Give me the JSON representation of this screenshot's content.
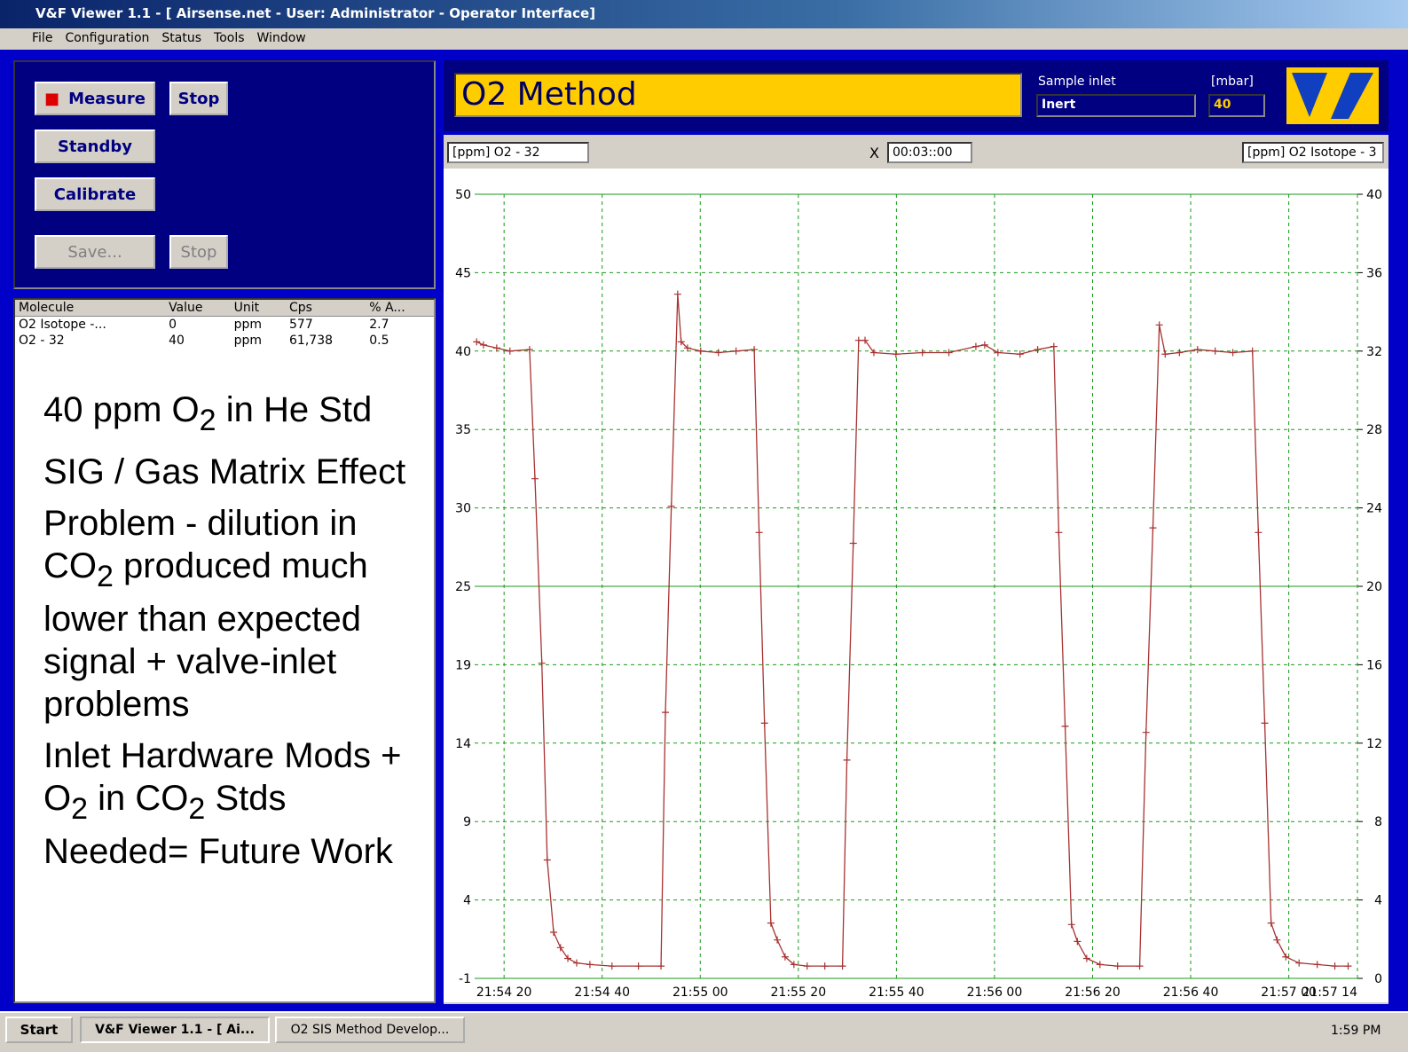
{
  "window": {
    "title": "V&F Viewer 1.1 - [  Airsense.net - User: Administrator - Operator Interface]",
    "menu": [
      "File",
      "Configuration",
      "Status",
      "Tools",
      "Window"
    ]
  },
  "controls": {
    "buttons": [
      "Measure",
      "Stop",
      "Standby",
      "Calibrate",
      "Save...",
      "Stop"
    ]
  },
  "table": {
    "header": [
      "Molecule",
      "Value",
      "Unit",
      "Cps",
      "% A..."
    ],
    "rows": [
      [
        "O2 Isotope -...",
        "0",
        "ppm",
        "577",
        "2.7"
      ],
      [
        "O2 - 32",
        "40",
        "ppm",
        "61,738",
        "0.5"
      ]
    ]
  },
  "notes": [
    [
      "40 ppm O",
      "2",
      " in He Std"
    ],
    [
      "SIG / Gas Matrix Effect"
    ],
    [
      "Problem - dilution in CO",
      "2",
      " produced much lower than expected signal + valve-inlet problems"
    ],
    [
      "Inlet Hardware Mods + O",
      "2",
      " in CO",
      "2",
      " Stds Needed= Future Work"
    ]
  ],
  "header": {
    "method": "O2 Method",
    "inlet_label": "Sample inlet",
    "inlet": "Inert",
    "pressure_label": "[mbar]",
    "pressure": "40"
  },
  "chart_toolbar": {
    "left_channel": "[ppm] O2 - 32",
    "x_label": "X",
    "span": "00:03::00",
    "right_channel": "[ppm] O2 Isotope - 3"
  },
  "chart_data": {
    "type": "line",
    "grid": true,
    "xlim": [
      78854,
      79034
    ],
    "xticks": [
      {
        "value": 78860,
        "label": "21:54 20"
      },
      {
        "value": 78880,
        "label": "21:54 40"
      },
      {
        "value": 78900,
        "label": "21:55 00"
      },
      {
        "value": 78920,
        "label": "21:55 20"
      },
      {
        "value": 78940,
        "label": "21:55 40"
      },
      {
        "value": 78960,
        "label": "21:56 00"
      },
      {
        "value": 78980,
        "label": "21:56 20"
      },
      {
        "value": 79000,
        "label": "21:56 40"
      },
      {
        "value": 79020,
        "label": "21:57 00"
      },
      {
        "value": 79034,
        "label": "21:57 14"
      }
    ],
    "ylim": [
      -1,
      50
    ],
    "yticks": [
      50,
      {
        "value": 44.9,
        "label": "45"
      },
      {
        "value": 39.8,
        "label": "40"
      },
      {
        "value": 34.7,
        "label": "35"
      },
      {
        "value": 29.6,
        "label": "30"
      },
      {
        "value": 24.5,
        "label": "25"
      },
      {
        "value": 19.4,
        "label": "19"
      },
      {
        "value": 14.3,
        "label": "14"
      },
      {
        "value": 9.2,
        "label": "9"
      },
      {
        "value": 4.1,
        "label": "4"
      },
      -1
    ],
    "y2lim": [
      0,
      40
    ],
    "y2ticks": [
      40,
      36,
      32,
      28,
      24,
      20,
      16,
      12,
      8,
      4,
      0
    ],
    "x": [
      78854.4,
      78855.8,
      78858.5,
      78861.2,
      78865.2,
      78866.3,
      78867.7,
      78868.8,
      78870.1,
      78871.5,
      78873.0,
      78874.8,
      78877.5,
      78882.0,
      78887.4,
      78892.0,
      78892.9,
      78894.1,
      78895.4,
      78896.1,
      78897.4,
      78900.1,
      78903.7,
      78907.3,
      78911.0,
      78912.0,
      78913.1,
      78914.4,
      78915.7,
      78917.3,
      78919.1,
      78921.8,
      78925.4,
      78929.0,
      78929.9,
      78931.2,
      78932.3,
      78933.6,
      78935.4,
      78939.9,
      78945.3,
      78950.7,
      78956.2,
      78958.0,
      78960.7,
      78965.2,
      78968.8,
      78972.1,
      78973.1,
      78974.4,
      78975.7,
      78976.9,
      78978.8,
      78981.5,
      78985.1,
      78989.6,
      78990.9,
      78992.3,
      78993.6,
      78994.8,
      78997.7,
      79001.4,
      79005.0,
      79008.6,
      79012.6,
      79013.8,
      79015.1,
      79016.4,
      79017.6,
      79019.4,
      79022.1,
      79025.8,
      79029.4,
      79032.1
    ],
    "series": [
      {
        "name": "O2 - 32",
        "color": "#a83232",
        "values": [
          40.4,
          40.2,
          40.0,
          39.8,
          39.9,
          31.5,
          19.5,
          6.7,
          2.0,
          1.0,
          0.3,
          0.0,
          -0.1,
          -0.2,
          -0.2,
          -0.2,
          16.3,
          29.7,
          43.5,
          40.4,
          40.0,
          39.8,
          39.7,
          39.8,
          39.9,
          28.0,
          15.6,
          2.6,
          1.5,
          0.4,
          -0.1,
          -0.2,
          -0.2,
          -0.2,
          13.2,
          27.3,
          40.5,
          40.5,
          39.7,
          39.6,
          39.7,
          39.7,
          40.1,
          40.2,
          39.7,
          39.6,
          39.9,
          40.1,
          28.0,
          15.4,
          2.5,
          1.4,
          0.3,
          -0.1,
          -0.2,
          -0.2,
          15.0,
          28.3,
          41.5,
          39.6,
          39.7,
          39.9,
          39.8,
          39.7,
          39.8,
          28.0,
          15.6,
          2.6,
          1.5,
          0.4,
          0.0,
          -0.1,
          -0.2,
          -0.2
        ]
      }
    ]
  },
  "taskbar": {
    "start": "Start",
    "tasks": [
      "V&F Viewer 1.1 - [ Ai...",
      "O2 SIS Method Develop..."
    ],
    "clock": "1:59 PM"
  }
}
